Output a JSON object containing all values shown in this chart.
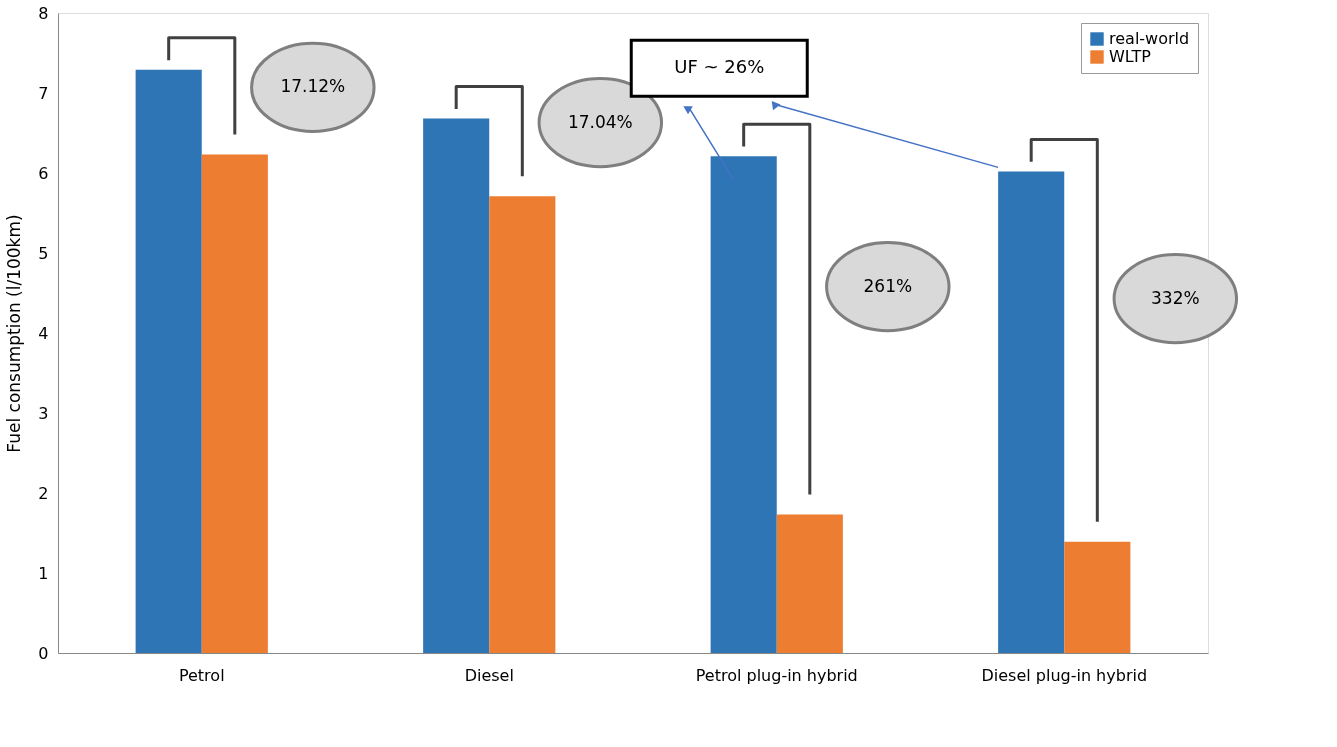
{
  "chart_data": {
    "type": "bar",
    "ylabel": "Fuel consumption (l/100km)",
    "categories": [
      "Petrol",
      "Diesel",
      "Petrol plug-in hybrid",
      "Diesel plug-in hybrid"
    ],
    "series": [
      {
        "name": "real-world",
        "color": "#2e75b6",
        "values": [
          7.29,
          6.68,
          6.21,
          6.02
        ]
      },
      {
        "name": "WLTP",
        "color": "#ed7d31",
        "values": [
          6.23,
          5.71,
          1.73,
          1.39
        ]
      }
    ],
    "ylim": [
      0,
      8
    ],
    "yticks": [
      0,
      1,
      2,
      3,
      4,
      5,
      6,
      7,
      8
    ],
    "grid": false,
    "legend": "top right",
    "annotations": [
      "17.12%",
      "17.04%",
      "261%",
      "332%",
      "UF ~ 26%"
    ]
  }
}
